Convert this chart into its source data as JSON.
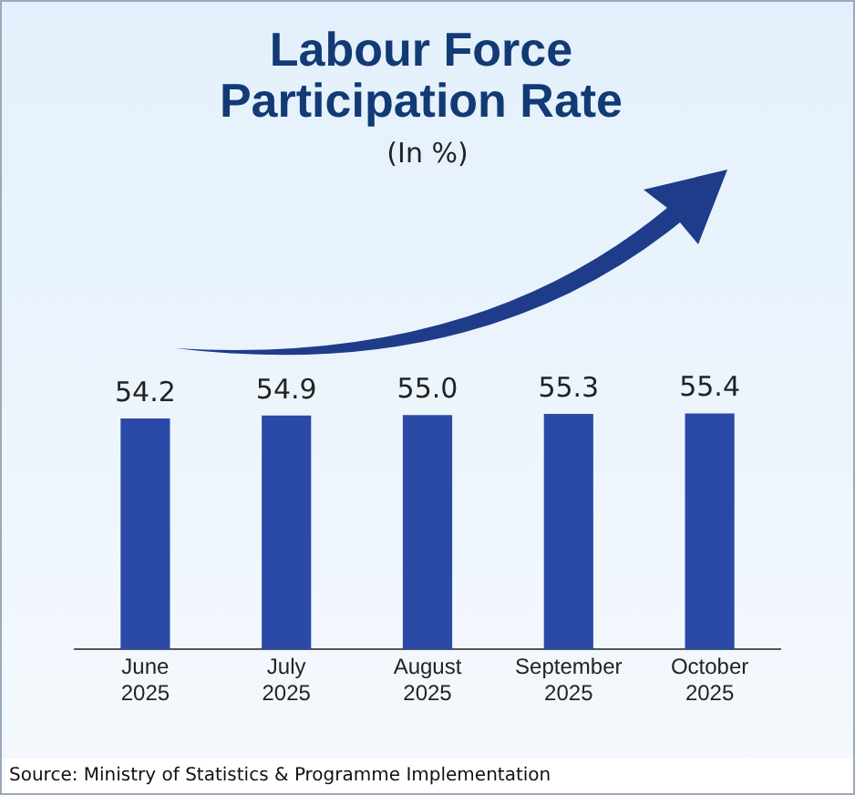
{
  "chart_data": {
    "type": "bar",
    "title": "Labour Force Participation Rate",
    "subtitle": "(In %)",
    "categories": [
      "June 2025",
      "July 2025",
      "August 2025",
      "September 2025",
      "October 2025"
    ],
    "values": [
      54.2,
      54.9,
      55.0,
      55.3,
      55.4
    ],
    "color": "#2b4aa8",
    "value_labels": [
      "54.2",
      "54.9",
      "55.0",
      "55.3",
      "55.4"
    ],
    "tick_labels": "x",
    "grid": false,
    "legend": false,
    "annotations": [
      "Source: Ministry of Statistics & Programme Implementation"
    ]
  }
}
